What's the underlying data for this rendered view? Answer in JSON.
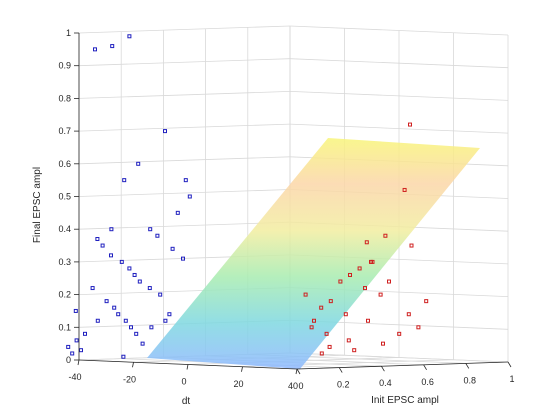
{
  "chart_data": {
    "type": "scatter",
    "subtype": "3d-scatter-with-fitted-plane",
    "xlabel": "dt",
    "ylabel": "Init EPSC ampl",
    "zlabel": "Final EPSC ampl",
    "x_ticks": [
      "-40",
      "-20",
      "0",
      "20",
      "40"
    ],
    "y_ticks": [
      "0",
      "0.2",
      "0.4",
      "0.6",
      "0.8",
      "1"
    ],
    "z_ticks": [
      "0",
      "0.1",
      "0.2",
      "0.3",
      "0.4",
      "0.5",
      "0.6",
      "0.7",
      "0.8",
      "0.9",
      "1"
    ],
    "x_range": [
      -40,
      40
    ],
    "y_range": [
      0,
      1
    ],
    "z_range": [
      0,
      1
    ],
    "grid": true,
    "surface_colormap": [
      "#8fb8ff",
      "#7fd8e0",
      "#a8ecb0",
      "#f2eda0",
      "#fbd6a8",
      "#f8f57a"
    ],
    "series": [
      {
        "color": "#1f1fbf",
        "marker": "square",
        "points": [
          [
            -30,
            0.05,
            0.95
          ],
          [
            -25,
            0.06,
            0.96
          ],
          [
            -20,
            0.07,
            0.99
          ],
          [
            -10,
            0.1,
            0.7
          ],
          [
            -18,
            0.09,
            0.6
          ],
          [
            -22,
            0.08,
            0.55
          ],
          [
            -5,
            0.14,
            0.55
          ],
          [
            -3,
            0.12,
            0.5
          ],
          [
            -6,
            0.1,
            0.45
          ],
          [
            -15,
            0.11,
            0.4
          ],
          [
            -12,
            0.09,
            0.38
          ],
          [
            -25,
            0.05,
            0.32
          ],
          [
            -22,
            0.06,
            0.3
          ],
          [
            -20,
            0.07,
            0.28
          ],
          [
            -18,
            0.06,
            0.26
          ],
          [
            -16,
            0.05,
            0.24
          ],
          [
            -14,
            0.08,
            0.22
          ],
          [
            -10,
            0.06,
            0.2
          ],
          [
            -26,
            0.04,
            0.18
          ],
          [
            -24,
            0.05,
            0.16
          ],
          [
            -22,
            0.03,
            0.14
          ],
          [
            -20,
            0.04,
            0.12
          ],
          [
            -18,
            0.03,
            0.1
          ],
          [
            -16,
            0.02,
            0.08
          ],
          [
            -30,
            0.03,
            0.22
          ],
          [
            -28,
            0.02,
            0.12
          ],
          [
            -32,
            0.02,
            0.08
          ],
          [
            -35,
            0.03,
            0.06
          ],
          [
            -34,
            0.04,
            0.03
          ],
          [
            -36,
            0.05,
            0.15
          ],
          [
            -12,
            0.04,
            0.1
          ],
          [
            -8,
            0.05,
            0.12
          ],
          [
            -6,
            0.03,
            0.14
          ],
          [
            -14,
            0.02,
            0.05
          ],
          [
            -28,
            0.06,
            0.35
          ],
          [
            -30,
            0.07,
            0.37
          ],
          [
            -26,
            0.08,
            0.4
          ],
          [
            -8,
            0.11,
            0.34
          ],
          [
            -4,
            0.09,
            0.31
          ],
          [
            -38,
            0.04,
            0.04
          ],
          [
            -36,
            0.02,
            0.02
          ],
          [
            -20,
            0.02,
            0.01
          ]
        ]
      },
      {
        "color": "#cf1f1f",
        "marker": "square",
        "points": [
          [
            20,
            0.9,
            0.72
          ],
          [
            22,
            0.7,
            0.52
          ],
          [
            18,
            0.6,
            0.38
          ],
          [
            25,
            0.65,
            0.35
          ],
          [
            15,
            0.55,
            0.3
          ],
          [
            12,
            0.5,
            0.28
          ],
          [
            10,
            0.45,
            0.26
          ],
          [
            8,
            0.4,
            0.24
          ],
          [
            14,
            0.48,
            0.22
          ],
          [
            18,
            0.52,
            0.2
          ],
          [
            6,
            0.35,
            0.18
          ],
          [
            4,
            0.3,
            0.16
          ],
          [
            10,
            0.38,
            0.14
          ],
          [
            16,
            0.42,
            0.12
          ],
          [
            2,
            0.25,
            0.1
          ],
          [
            6,
            0.28,
            0.08
          ],
          [
            12,
            0.32,
            0.06
          ],
          [
            20,
            0.45,
            0.05
          ],
          [
            8,
            0.22,
            0.04
          ],
          [
            14,
            0.3,
            0.03
          ],
          [
            24,
            0.5,
            0.08
          ],
          [
            28,
            0.6,
            0.1
          ],
          [
            26,
            0.55,
            0.14
          ],
          [
            30,
            0.62,
            0.18
          ],
          [
            22,
            0.44,
            0.24
          ],
          [
            18,
            0.36,
            0.3
          ],
          [
            16,
            0.4,
            0.36
          ],
          [
            6,
            0.2,
            0.02
          ],
          [
            4,
            0.18,
            0.12
          ],
          [
            2,
            0.15,
            0.2
          ]
        ]
      }
    ]
  }
}
